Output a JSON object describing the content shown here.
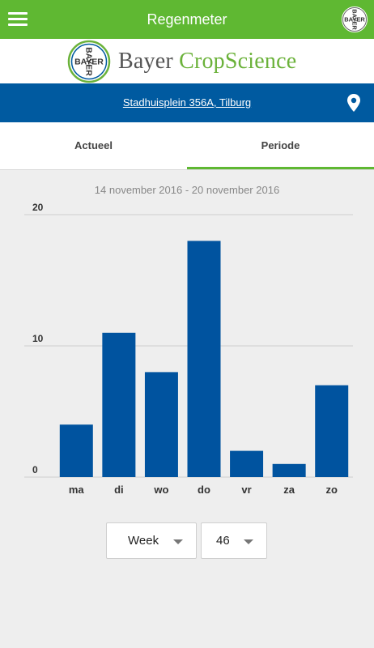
{
  "app": {
    "title": "Regenmeter",
    "logo_text": "BAYER",
    "brand_name_part1": "Bayer",
    "brand_name_part2": "CropScience",
    "icons": {
      "menu": "hamburger-menu-icon",
      "logo": "bayer-cross-logo",
      "location": "map-pin-icon"
    }
  },
  "location": {
    "address": "Stadhuisplein 356A, Tilburg"
  },
  "tabs": [
    {
      "label": "Actueel",
      "active": false
    },
    {
      "label": "Periode",
      "active": true
    }
  ],
  "period": {
    "range_label": "14 november 2016 - 20 november 2016"
  },
  "selectors": {
    "period_type": "Week",
    "week_number": "46"
  },
  "colors": {
    "header_green": "#5fb832",
    "brand_blue": "#005aa0",
    "bar_blue": "#00539f"
  },
  "chart_data": {
    "type": "bar",
    "categories": [
      "ma",
      "di",
      "wo",
      "do",
      "vr",
      "za",
      "zo"
    ],
    "values": [
      4,
      11,
      8,
      18,
      2,
      1,
      7
    ],
    "y_ticks": [
      "0",
      "10",
      "20"
    ],
    "ylim": [
      0,
      20
    ],
    "grid": true,
    "title": "",
    "xlabel": "",
    "ylabel": ""
  }
}
